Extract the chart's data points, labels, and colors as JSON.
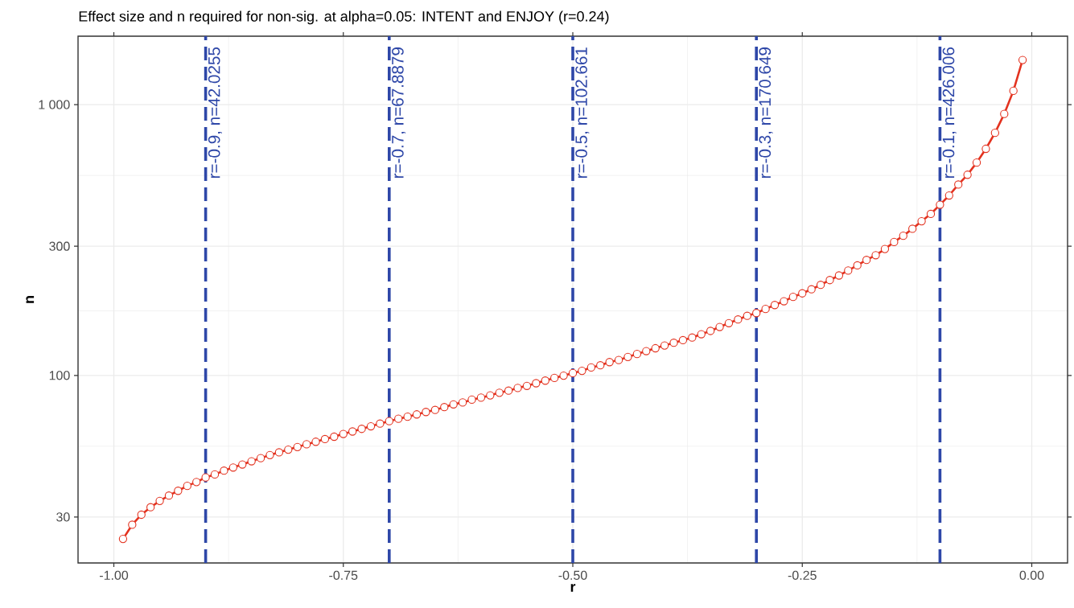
{
  "chart_data": {
    "type": "line",
    "title": "Effect size and n required for non-sig. at alpha=0.05: INTENT and ENJOY (r=0.24)",
    "xlabel": "r",
    "ylabel": "n",
    "x": [
      -0.99,
      -0.98,
      -0.97,
      -0.96,
      -0.95,
      -0.94,
      -0.93,
      -0.92,
      -0.91,
      -0.9,
      -0.89,
      -0.88,
      -0.87,
      -0.86,
      -0.85,
      -0.84,
      -0.83,
      -0.82,
      -0.81,
      -0.8,
      -0.79,
      -0.78,
      -0.77,
      -0.76,
      -0.75,
      -0.74,
      -0.73,
      -0.72,
      -0.71,
      -0.7,
      -0.69,
      -0.68,
      -0.67,
      -0.66,
      -0.65,
      -0.64,
      -0.63,
      -0.62,
      -0.61,
      -0.6,
      -0.59,
      -0.58,
      -0.57,
      -0.56,
      -0.55,
      -0.54,
      -0.53,
      -0.52,
      -0.51,
      -0.5,
      -0.49,
      -0.48,
      -0.47,
      -0.46,
      -0.45,
      -0.44,
      -0.43,
      -0.42,
      -0.41,
      -0.4,
      -0.39,
      -0.38,
      -0.37,
      -0.36,
      -0.35,
      -0.34,
      -0.33,
      -0.32,
      -0.31,
      -0.3,
      -0.29,
      -0.28,
      -0.27,
      -0.26,
      -0.25,
      -0.24,
      -0.23,
      -0.22,
      -0.21,
      -0.2,
      -0.19,
      -0.18,
      -0.17,
      -0.16,
      -0.15,
      -0.14,
      -0.13,
      -0.12,
      -0.11,
      -0.1,
      -0.09,
      -0.08,
      -0.07,
      -0.06,
      -0.05,
      -0.04,
      -0.03,
      -0.02,
      -0.01
    ],
    "series": [
      {
        "color": "#e3321f",
        "values": [
          24.9,
          28.1,
          30.6,
          32.6,
          34.4,
          36.0,
          37.5,
          39.1,
          40.4,
          42.0,
          43.1,
          44.5,
          45.7,
          46.9,
          48.2,
          49.5,
          50.8,
          52.0,
          53.2,
          54.4,
          55.7,
          56.9,
          58.2,
          59.4,
          60.8,
          62.1,
          63.5,
          64.9,
          66.4,
          67.8,
          69.2,
          70.4,
          71.8,
          73.3,
          74.6,
          76.4,
          78.2,
          79.5,
          81.4,
          82.8,
          84.4,
          86.3,
          87.9,
          89.9,
          91.5,
          93.6,
          95.7,
          97.9,
          99.8,
          102,
          104,
          107,
          109,
          112,
          114,
          117,
          120,
          123,
          126,
          129,
          132,
          135,
          138,
          142,
          146,
          151,
          156,
          161,
          166,
          170,
          176,
          182,
          188,
          195,
          201,
          208,
          216,
          225,
          234,
          244,
          255,
          267,
          278,
          293,
          311,
          328,
          348,
          371,
          395,
          427,
          462,
          507,
          551,
          611,
          687,
          787,
          924,
          1125,
          1462
        ]
      }
    ],
    "log": "y",
    "xlim": [
      -1.039,
      0.039
    ],
    "ylim": [
      20.3,
      1790
    ],
    "xticks": [
      {
        "value": -1,
        "label": "-1.00"
      },
      {
        "value": -0.75,
        "label": "-0.75"
      },
      {
        "value": -0.5,
        "label": "-0.50"
      },
      {
        "value": -0.25,
        "label": "-0.25"
      },
      {
        "value": 0,
        "label": "0.00"
      }
    ],
    "yticks": [
      30,
      100,
      300,
      {
        "value": 1000,
        "label": "1 000"
      }
    ],
    "grid": true,
    "marker": "circle",
    "line_style": "solid",
    "ref_lines": [
      {
        "axis": "x",
        "value": -0.9,
        "label": "r=-0.9, n=42.0255",
        "color": "#2e47a8",
        "line_style": "dashed"
      },
      {
        "axis": "x",
        "value": -0.7,
        "label": "r=-0.7, n=67.8879",
        "color": "#2e47a8",
        "line_style": "dashed"
      },
      {
        "axis": "x",
        "value": -0.5,
        "label": "r=-0.5, n=102.661",
        "color": "#2e47a8",
        "line_style": "dashed"
      },
      {
        "axis": "x",
        "value": -0.3,
        "label": "r=-0.3, n=170.649",
        "color": "#2e47a8",
        "line_style": "dashed"
      },
      {
        "axis": "x",
        "value": -0.1,
        "label": "r=-0.1, n=426.006",
        "color": "#2e47a8",
        "line_style": "dashed"
      }
    ]
  }
}
